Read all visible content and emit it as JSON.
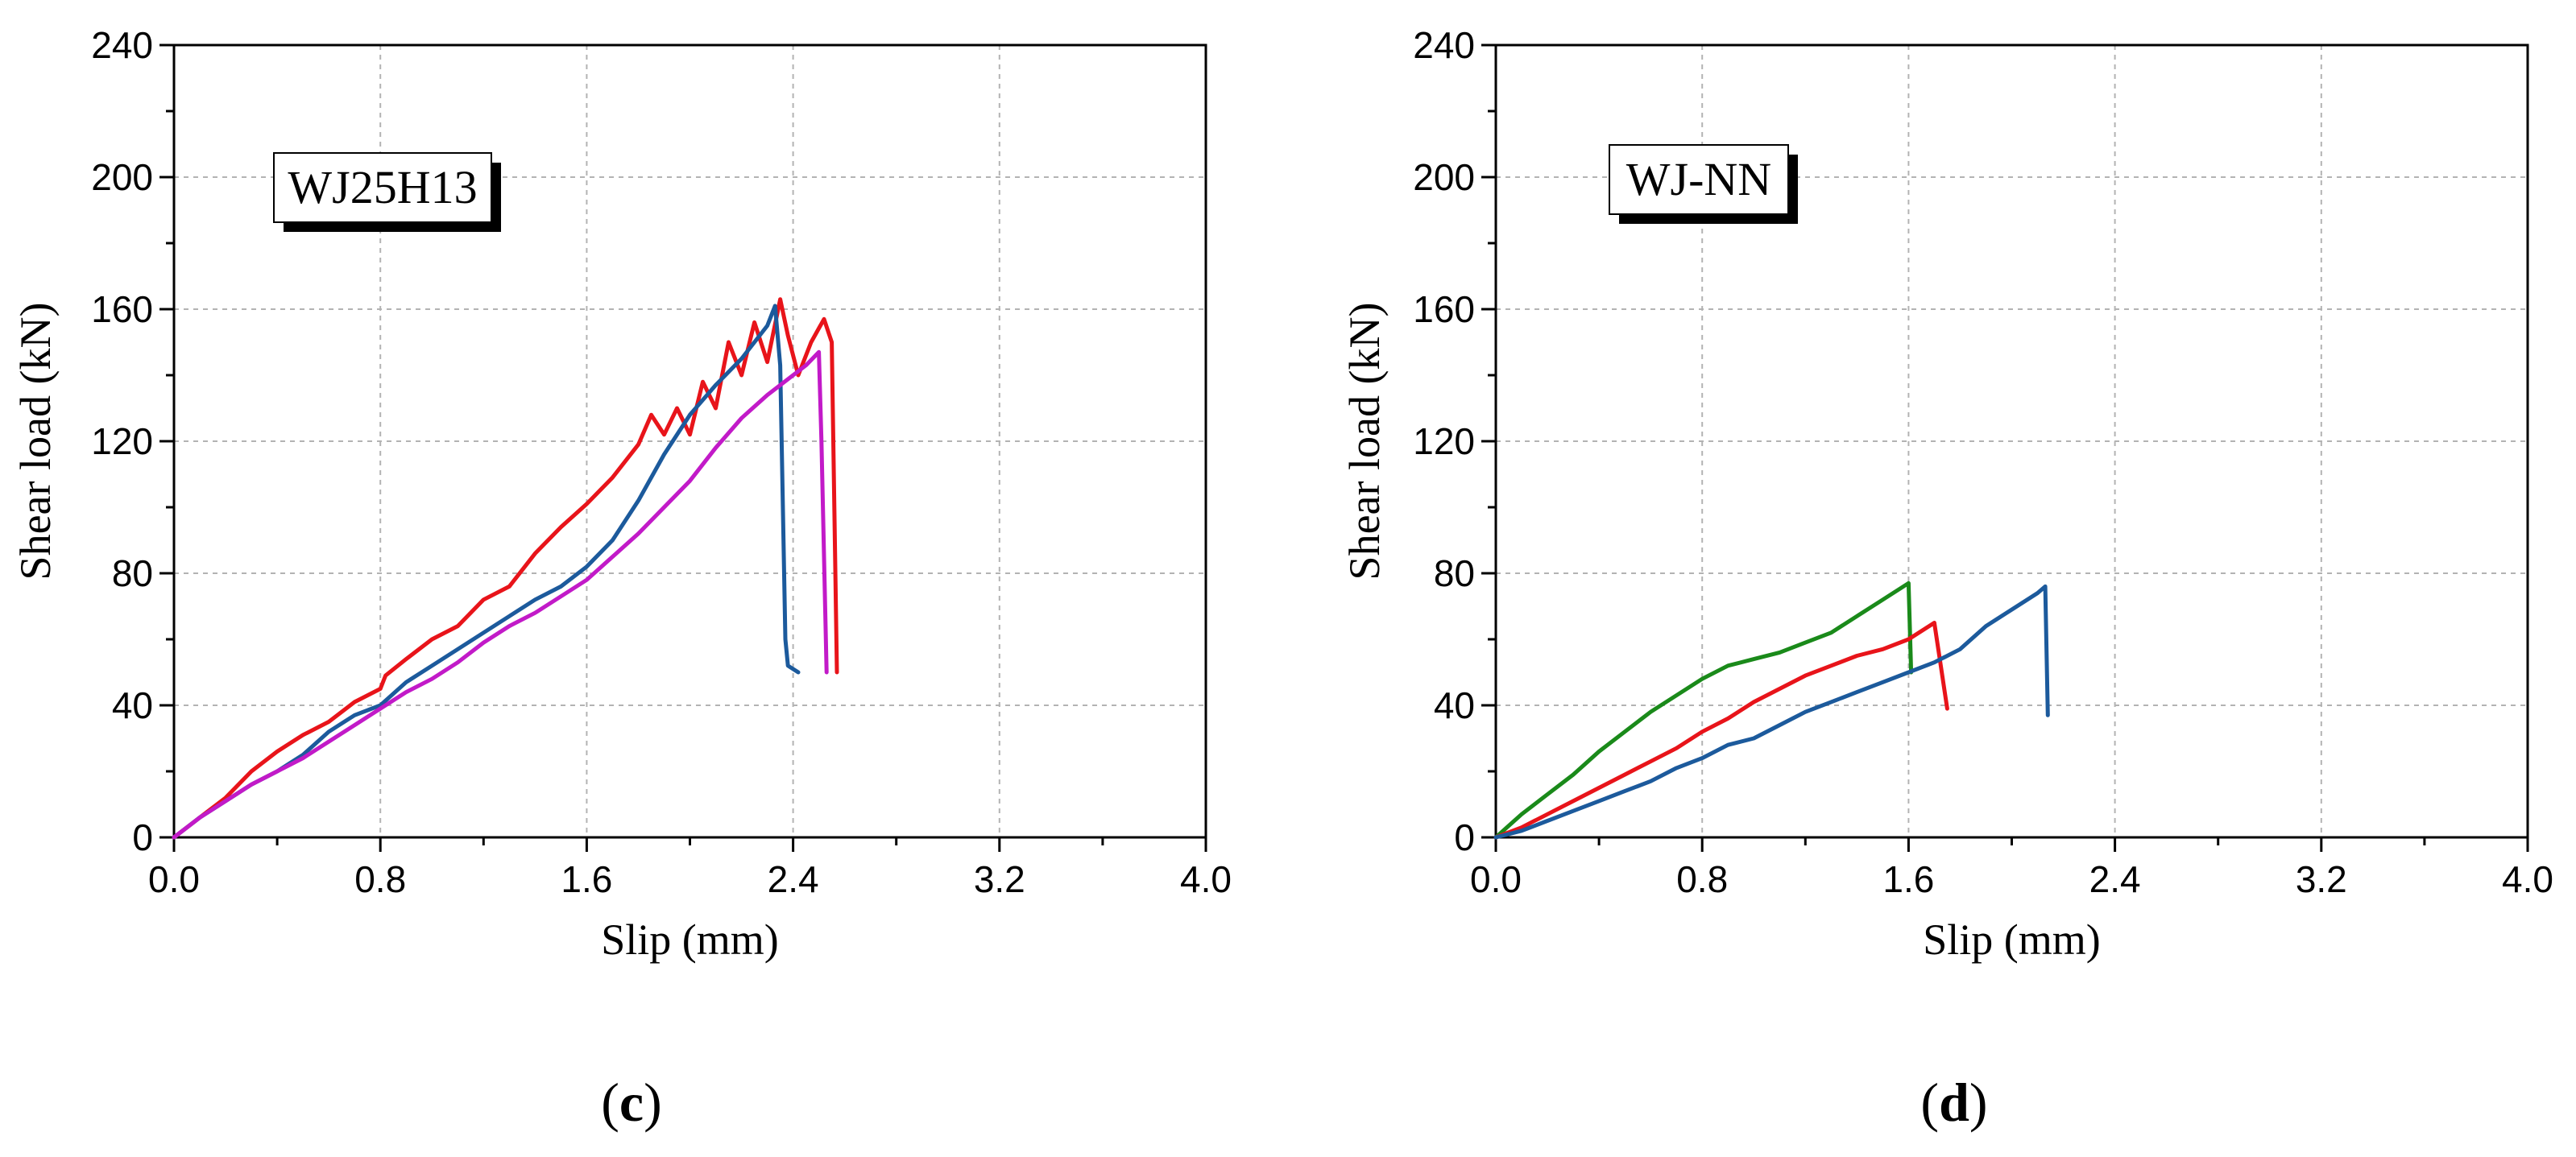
{
  "chart_data": [
    {
      "type": "line",
      "panel_label": "(c)",
      "annotation": "WJ25H13",
      "xlabel": "Slip (mm)",
      "ylabel": "Shear load (kN)",
      "xlim": [
        0,
        4.0
      ],
      "ylim": [
        0,
        240
      ],
      "xticks": [
        "0.0",
        "0.8",
        "1.6",
        "2.4",
        "3.2",
        "4.0"
      ],
      "yticks": [
        "0",
        "40",
        "80",
        "120",
        "160",
        "200",
        "240"
      ],
      "xtick_values": [
        0,
        0.8,
        1.6,
        2.4,
        3.2,
        4.0
      ],
      "ytick_values": [
        0,
        40,
        80,
        120,
        160,
        200,
        240
      ],
      "grid": true,
      "series": [
        {
          "color": "#e8141a",
          "points": [
            [
              0,
              0
            ],
            [
              0.1,
              6
            ],
            [
              0.2,
              12
            ],
            [
              0.3,
              20
            ],
            [
              0.4,
              26
            ],
            [
              0.5,
              31
            ],
            [
              0.6,
              35
            ],
            [
              0.7,
              41
            ],
            [
              0.8,
              45
            ],
            [
              0.82,
              49
            ],
            [
              0.9,
              54
            ],
            [
              1.0,
              60
            ],
            [
              1.1,
              64
            ],
            [
              1.2,
              72
            ],
            [
              1.3,
              76
            ],
            [
              1.4,
              86
            ],
            [
              1.5,
              94
            ],
            [
              1.6,
              101
            ],
            [
              1.7,
              109
            ],
            [
              1.8,
              119
            ],
            [
              1.85,
              128
            ],
            [
              1.9,
              122
            ],
            [
              1.95,
              130
            ],
            [
              2.0,
              122
            ],
            [
              2.05,
              138
            ],
            [
              2.1,
              130
            ],
            [
              2.15,
              150
            ],
            [
              2.2,
              140
            ],
            [
              2.25,
              156
            ],
            [
              2.3,
              144
            ],
            [
              2.35,
              163
            ],
            [
              2.38,
              152
            ],
            [
              2.42,
              140
            ],
            [
              2.47,
              150
            ],
            [
              2.52,
              157
            ],
            [
              2.55,
              150
            ],
            [
              2.57,
              50
            ]
          ]
        },
        {
          "color": "#1c5a9c",
          "points": [
            [
              0,
              0
            ],
            [
              0.1,
              6
            ],
            [
              0.2,
              11
            ],
            [
              0.3,
              16
            ],
            [
              0.4,
              20
            ],
            [
              0.5,
              25
            ],
            [
              0.6,
              32
            ],
            [
              0.7,
              37
            ],
            [
              0.8,
              40
            ],
            [
              0.9,
              47
            ],
            [
              1.0,
              52
            ],
            [
              1.1,
              57
            ],
            [
              1.2,
              62
            ],
            [
              1.3,
              67
            ],
            [
              1.4,
              72
            ],
            [
              1.5,
              76
            ],
            [
              1.6,
              82
            ],
            [
              1.7,
              90
            ],
            [
              1.8,
              102
            ],
            [
              1.9,
              116
            ],
            [
              2.0,
              128
            ],
            [
              2.1,
              137
            ],
            [
              2.2,
              145
            ],
            [
              2.25,
              150
            ],
            [
              2.3,
              155
            ],
            [
              2.33,
              161
            ],
            [
              2.35,
              143
            ],
            [
              2.37,
              60
            ],
            [
              2.38,
              52
            ],
            [
              2.42,
              50
            ]
          ]
        },
        {
          "color": "#c21ac8",
          "points": [
            [
              0,
              0
            ],
            [
              0.1,
              6
            ],
            [
              0.2,
              11
            ],
            [
              0.3,
              16
            ],
            [
              0.4,
              20
            ],
            [
              0.5,
              24
            ],
            [
              0.6,
              29
            ],
            [
              0.7,
              34
            ],
            [
              0.8,
              39
            ],
            [
              0.9,
              44
            ],
            [
              1.0,
              48
            ],
            [
              1.1,
              53
            ],
            [
              1.2,
              59
            ],
            [
              1.3,
              64
            ],
            [
              1.4,
              68
            ],
            [
              1.5,
              73
            ],
            [
              1.6,
              78
            ],
            [
              1.7,
              85
            ],
            [
              1.8,
              92
            ],
            [
              1.9,
              100
            ],
            [
              2.0,
              108
            ],
            [
              2.1,
              118
            ],
            [
              2.2,
              127
            ],
            [
              2.3,
              134
            ],
            [
              2.4,
              140
            ],
            [
              2.45,
              143
            ],
            [
              2.5,
              147
            ],
            [
              2.51,
              120
            ],
            [
              2.53,
              50
            ]
          ]
        }
      ]
    },
    {
      "type": "line",
      "panel_label": "(d)",
      "annotation": "WJ-NN",
      "xlabel": "Slip (mm)",
      "ylabel": "Shear load (kN)",
      "xlim": [
        0,
        4.0
      ],
      "ylim": [
        0,
        240
      ],
      "xticks": [
        "0.0",
        "0.8",
        "1.6",
        "2.4",
        "3.2",
        "4.0"
      ],
      "yticks": [
        "0",
        "40",
        "80",
        "120",
        "160",
        "200",
        "240"
      ],
      "xtick_values": [
        0,
        0.8,
        1.6,
        2.4,
        3.2,
        4.0
      ],
      "ytick_values": [
        0,
        40,
        80,
        120,
        160,
        200,
        240
      ],
      "grid": true,
      "series": [
        {
          "color": "#1a8a1a",
          "points": [
            [
              0,
              0
            ],
            [
              0.1,
              7
            ],
            [
              0.2,
              13
            ],
            [
              0.3,
              19
            ],
            [
              0.4,
              26
            ],
            [
              0.5,
              32
            ],
            [
              0.6,
              38
            ],
            [
              0.7,
              43
            ],
            [
              0.8,
              48
            ],
            [
              0.9,
              52
            ],
            [
              1.0,
              54
            ],
            [
              1.1,
              56
            ],
            [
              1.2,
              59
            ],
            [
              1.3,
              62
            ],
            [
              1.4,
              67
            ],
            [
              1.5,
              72
            ],
            [
              1.6,
              77
            ],
            [
              1.61,
              50
            ]
          ]
        },
        {
          "color": "#e8141a",
          "points": [
            [
              0,
              0
            ],
            [
              0.1,
              3
            ],
            [
              0.2,
              7
            ],
            [
              0.3,
              11
            ],
            [
              0.4,
              15
            ],
            [
              0.5,
              19
            ],
            [
              0.6,
              23
            ],
            [
              0.7,
              27
            ],
            [
              0.8,
              32
            ],
            [
              0.9,
              36
            ],
            [
              1.0,
              41
            ],
            [
              1.1,
              45
            ],
            [
              1.2,
              49
            ],
            [
              1.3,
              52
            ],
            [
              1.4,
              55
            ],
            [
              1.5,
              57
            ],
            [
              1.6,
              60
            ],
            [
              1.7,
              65
            ],
            [
              1.75,
              39
            ]
          ]
        },
        {
          "color": "#1c5a9c",
          "points": [
            [
              0,
              0
            ],
            [
              0.1,
              2
            ],
            [
              0.2,
              5
            ],
            [
              0.3,
              8
            ],
            [
              0.4,
              11
            ],
            [
              0.5,
              14
            ],
            [
              0.6,
              17
            ],
            [
              0.7,
              21
            ],
            [
              0.8,
              24
            ],
            [
              0.9,
              28
            ],
            [
              1.0,
              30
            ],
            [
              1.1,
              34
            ],
            [
              1.2,
              38
            ],
            [
              1.3,
              41
            ],
            [
              1.4,
              44
            ],
            [
              1.5,
              47
            ],
            [
              1.6,
              50
            ],
            [
              1.7,
              53
            ],
            [
              1.8,
              57
            ],
            [
              1.9,
              64
            ],
            [
              2.0,
              69
            ],
            [
              2.1,
              74
            ],
            [
              2.13,
              76
            ],
            [
              2.14,
              37
            ]
          ]
        }
      ]
    }
  ]
}
